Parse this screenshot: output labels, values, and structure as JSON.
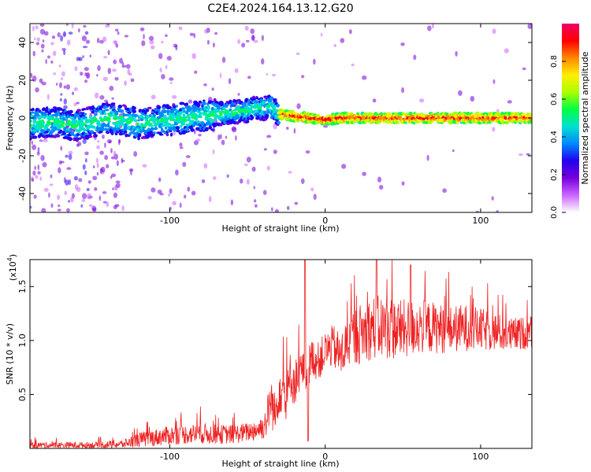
{
  "figure": {
    "title": "C2E4.2024.164.13.12.G20"
  },
  "chart_data": [
    {
      "type": "heatmap",
      "title": "C2E4.2024.164.13.12.G20",
      "xlabel": "Height of straight line (km)",
      "ylabel": "Frequency (Hz)",
      "xlim": [
        -190,
        133
      ],
      "ylim": [
        -50,
        50
      ],
      "xticks": [
        -100,
        0,
        100
      ],
      "yticks": [
        -40,
        -20,
        0,
        20,
        40
      ],
      "grid": false,
      "ridge": {
        "x": [
          -190,
          -175,
          -160,
          -150,
          -140,
          -130,
          -120,
          -110,
          -100,
          -90,
          -80,
          -70,
          -60,
          -50,
          -45,
          -40,
          -35,
          -30,
          -20,
          -10,
          0,
          10,
          20,
          40,
          60,
          80,
          100,
          120,
          133
        ],
        "y": [
          -3,
          -2,
          -4,
          -2,
          0,
          -1,
          -3,
          -2,
          -1,
          0,
          1,
          2,
          3,
          4,
          5,
          5,
          6,
          2,
          1,
          0,
          -1,
          0,
          0,
          0,
          0,
          0,
          0,
          0,
          0
        ]
      },
      "colorbar": {
        "label": "Normalized spectral amplitude",
        "range": [
          0,
          1
        ],
        "ticks": [
          0.0,
          0.2,
          0.4,
          0.6,
          0.8
        ],
        "colors": [
          "#ffffff",
          "#cc66ff",
          "#7700dd",
          "#2200ee",
          "#0088ff",
          "#00e0d0",
          "#00ff44",
          "#aaff00",
          "#ffee00",
          "#ff8800",
          "#ff0000",
          "#ee0066"
        ]
      }
    },
    {
      "type": "line",
      "xlabel": "Height of straight line (km)",
      "ylabel": "SNR (10 * v/v)",
      "yscale_label": "(x10",
      "yscale_exp": "4",
      "xlim": [
        -190,
        133
      ],
      "ylim": [
        0,
        1.75
      ],
      "xticks": [
        -100,
        0,
        100
      ],
      "yticks": [
        0.5,
        1.0,
        1.5
      ],
      "ytick_labels": [
        "0.5",
        "1.0",
        "1.5"
      ],
      "grid": false,
      "series": [
        {
          "color": "#ee2222",
          "x": [
            -190,
            -170,
            -150,
            -130,
            -125,
            -120,
            -110,
            -100,
            -90,
            -80,
            -70,
            -60,
            -50,
            -45,
            -40,
            -38,
            -35,
            -32,
            -30,
            -28,
            -25,
            -22,
            -20,
            -15,
            -12,
            -10,
            -8,
            -5,
            0,
            5,
            10,
            15,
            20,
            25,
            30,
            40,
            50,
            60,
            70,
            80,
            90,
            100,
            110,
            120,
            133
          ],
          "y": [
            0.03,
            0.03,
            0.03,
            0.04,
            0.06,
            0.08,
            0.1,
            0.12,
            0.13,
            0.14,
            0.13,
            0.13,
            0.15,
            0.17,
            0.2,
            0.25,
            0.45,
            0.3,
            0.55,
            0.6,
            0.4,
            0.7,
            0.6,
            0.75,
            0.65,
            0.8,
            0.85,
            0.8,
            0.9,
            0.95,
            0.85,
            1.0,
            1.05,
            1.08,
            1.12,
            1.12,
            1.1,
            1.13,
            1.12,
            1.1,
            1.12,
            1.1,
            1.08,
            1.05,
            1.08
          ],
          "spread": [
            0.03,
            0.03,
            0.03,
            0.04,
            0.05,
            0.07,
            0.08,
            0.09,
            0.09,
            0.1,
            0.09,
            0.09,
            0.09,
            0.1,
            0.12,
            0.15,
            0.25,
            0.2,
            0.25,
            0.28,
            0.25,
            0.25,
            0.22,
            0.18,
            0.18,
            0.18,
            0.18,
            0.18,
            0.18,
            0.2,
            0.22,
            0.25,
            0.28,
            0.28,
            0.3,
            0.3,
            0.28,
            0.26,
            0.24,
            0.22,
            0.22,
            0.2,
            0.18,
            0.16,
            0.15
          ],
          "spikes": [
            {
              "x": -13,
              "y": 1.75
            },
            {
              "x": -11,
              "y": 0.07
            },
            {
              "x": 33,
              "y": 1.75
            },
            {
              "x": 55,
              "y": 1.7
            }
          ]
        }
      ]
    }
  ]
}
